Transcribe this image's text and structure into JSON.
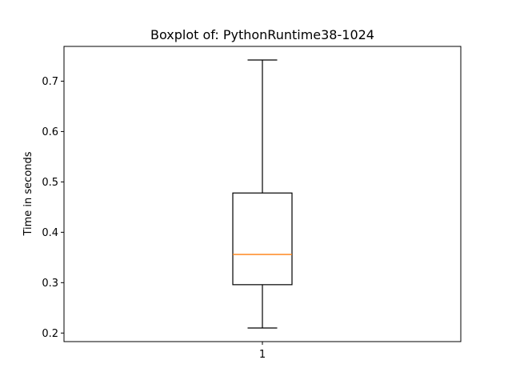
{
  "chart_data": {
    "type": "boxplot",
    "title": "Boxplot of: PythonRuntime38-1024",
    "xlabel": "",
    "ylabel": "Time in seconds",
    "categories": [
      "1"
    ],
    "boxes": [
      {
        "label": "1",
        "whisker_low": 0.21,
        "q1": 0.296,
        "median": 0.356,
        "q3": 0.478,
        "whisker_high": 0.742
      }
    ],
    "ylim": [
      0.183,
      0.769
    ],
    "yticks": [
      0.2,
      0.3,
      0.4,
      0.5,
      0.6,
      0.7
    ],
    "ytick_labels": [
      "0.2",
      "0.3",
      "0.4",
      "0.5",
      "0.6",
      "0.7"
    ],
    "xlim": [
      0.5,
      1.5
    ],
    "grid": false,
    "colors": {
      "box": "#000000",
      "median": "#ff7f0e",
      "background": "#ffffff"
    }
  }
}
